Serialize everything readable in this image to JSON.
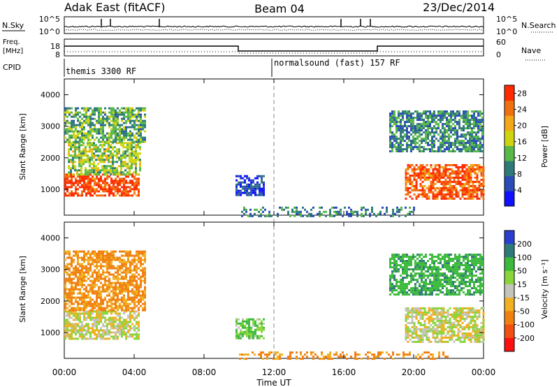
{
  "header": {
    "radar": "Adak East (fitACF)",
    "beam": "Beam 04",
    "date": "23/Dec/2014"
  },
  "panels": {
    "nsky": {
      "left_label": "N.Sky",
      "right_label": "N.Search",
      "left_ticks": [
        "10^5",
        "10^0"
      ],
      "right_ticks": [
        "10^5",
        "10^0"
      ]
    },
    "freq": {
      "left_label_line1": "Freq.",
      "left_label_line2": "[MHz]",
      "right_label": "Nave",
      "left_ticks": [
        "18",
        "8"
      ],
      "right_ticks": [
        "60",
        "0"
      ]
    },
    "cpid": {
      "label": "CPID",
      "segments": [
        {
          "text": "themis 3300 RF"
        },
        {
          "text": "normalsound (fast) 157 RF"
        }
      ]
    }
  },
  "chart_data": [
    {
      "type": "heatmap",
      "title": "",
      "xlabel": "Time UT",
      "ylabel": "Slant Range [km]",
      "x_ticks": [
        "00:00",
        "04:00",
        "08:00",
        "12:00",
        "16:00",
        "20:00",
        "00:00"
      ],
      "xlim_hours": [
        0,
        24
      ],
      "y_ticks": [
        1000,
        2000,
        3000,
        4000
      ],
      "ylim": [
        180,
        4500
      ],
      "colorbar": {
        "label": "Power [dB]",
        "ticks": [
          4,
          8,
          12,
          16,
          20,
          24,
          28
        ],
        "range": [
          0,
          30
        ],
        "colors": [
          "#1010ff",
          "#2a4cb8",
          "#2f7a78",
          "#58b848",
          "#cfd410",
          "#f2a818",
          "#f07010",
          "#ff2a00"
        ]
      },
      "echo_regions": [
        {
          "t": [
            0.0,
            4.3
          ],
          "range": [
            800,
            1500
          ],
          "value": 27
        },
        {
          "t": [
            0.2,
            4.3
          ],
          "range": [
            1500,
            2500
          ],
          "value": 15
        },
        {
          "t": [
            0.0,
            4.6
          ],
          "range": [
            2500,
            3600
          ],
          "value": 12
        },
        {
          "t": [
            9.8,
            11.4
          ],
          "range": [
            850,
            1450
          ],
          "value": 5
        },
        {
          "t": [
            10.0,
            20.0
          ],
          "range": [
            180,
            450
          ],
          "value": 9
        },
        {
          "t": [
            18.6,
            24.0
          ],
          "range": [
            2200,
            3500
          ],
          "value": 10
        },
        {
          "t": [
            19.5,
            24.0
          ],
          "range": [
            700,
            1800
          ],
          "value": 26
        }
      ]
    },
    {
      "type": "heatmap",
      "title": "",
      "xlabel": "Time UT",
      "ylabel": "Slant Range [km]",
      "x_ticks": [
        "00:00",
        "04:00",
        "08:00",
        "12:00",
        "16:00",
        "20:00",
        "00:00"
      ],
      "xlim_hours": [
        0,
        24
      ],
      "y_ticks": [
        1000,
        2000,
        3000,
        4000
      ],
      "ylim": [
        180,
        4500
      ],
      "colorbar": {
        "label": "Velocity [m s⁻¹]",
        "ticks": [
          200,
          100,
          50,
          15,
          -15,
          -50,
          -100,
          -200
        ],
        "colors": [
          "#2a3fd0",
          "#2f7a78",
          "#3cba3c",
          "#8ad53a",
          "#c4c4bc",
          "#f0b020",
          "#f08010",
          "#f05010",
          "#ff1010"
        ]
      },
      "echo_regions": [
        {
          "t": [
            0.0,
            4.3
          ],
          "range": [
            800,
            1700
          ],
          "value": 0
        },
        {
          "t": [
            0.0,
            4.6
          ],
          "range": [
            1700,
            3600
          ],
          "value": -40
        },
        {
          "t": [
            9.8,
            11.4
          ],
          "range": [
            850,
            1450
          ],
          "value": 30
        },
        {
          "t": [
            10.0,
            22.0
          ],
          "range": [
            180,
            400
          ],
          "value": -40
        },
        {
          "t": [
            18.6,
            24.0
          ],
          "range": [
            2200,
            3500
          ],
          "value": 60
        },
        {
          "t": [
            19.5,
            24.0
          ],
          "range": [
            700,
            1800
          ],
          "value": 0
        }
      ]
    }
  ]
}
